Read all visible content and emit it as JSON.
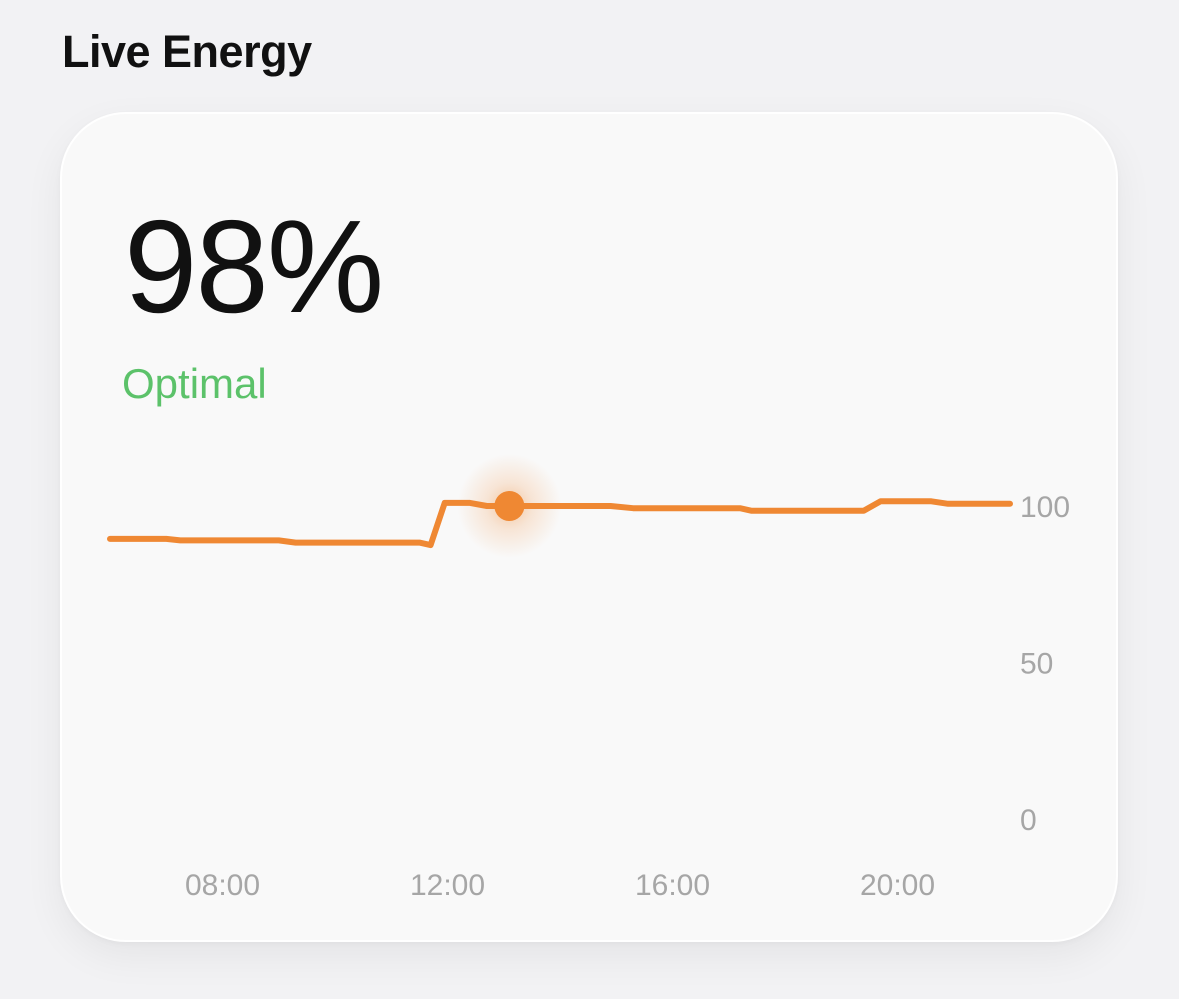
{
  "section": {
    "title": "Live Energy"
  },
  "card": {
    "value": "98%",
    "status": "Optimal",
    "status_color": "#5cc26a",
    "accent_color": "#ef8833"
  },
  "chart_data": {
    "type": "line",
    "title": "",
    "xlabel": "",
    "ylabel": "",
    "x_tick_labels": [
      "08:00",
      "12:00",
      "16:00",
      "20:00"
    ],
    "x_tick_values": [
      8,
      12,
      16,
      20
    ],
    "y_ticks": [
      0,
      50,
      100
    ],
    "ylim": [
      0,
      100
    ],
    "xlim": [
      6,
      22
    ],
    "grid": false,
    "highlight": {
      "x": 13.1,
      "y": 100
    },
    "series": [
      {
        "color": "#ef8833",
        "points": [
          [
            6.0,
            89.5
          ],
          [
            7.0,
            89.5
          ],
          [
            7.25,
            89
          ],
          [
            8.0,
            89
          ],
          [
            9.0,
            89
          ],
          [
            9.3,
            88.3
          ],
          [
            11.5,
            88.3
          ],
          [
            11.7,
            87.5
          ],
          [
            11.95,
            101
          ],
          [
            12.4,
            101
          ],
          [
            12.7,
            100
          ],
          [
            13.1,
            100
          ],
          [
            14.0,
            100
          ],
          [
            14.9,
            100
          ],
          [
            15.3,
            99.3
          ],
          [
            17.2,
            99.3
          ],
          [
            17.4,
            98.5
          ],
          [
            19.4,
            98.5
          ],
          [
            19.7,
            101.5
          ],
          [
            20.6,
            101.5
          ],
          [
            20.9,
            100.7
          ],
          [
            22.0,
            100.7
          ]
        ]
      }
    ]
  }
}
